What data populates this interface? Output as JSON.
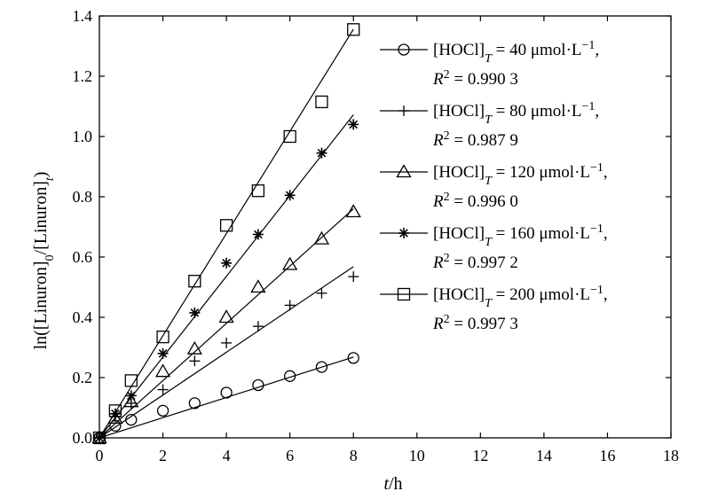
{
  "chart_data": {
    "type": "scatter",
    "xlabel": {
      "italic": "t",
      "rest": "/h"
    },
    "ylabel": {
      "parts": [
        "ln([Linuron]",
        "0",
        "/[Linuron]",
        "t",
        ")"
      ]
    },
    "xlim": [
      0,
      18
    ],
    "ylim": [
      0,
      1.4
    ],
    "xticks": [
      0,
      2,
      4,
      6,
      8,
      10,
      12,
      14,
      16,
      18
    ],
    "yticks": [
      0.0,
      0.2,
      0.4,
      0.6,
      0.8,
      1.0,
      1.2,
      1.4
    ],
    "grid": false,
    "legend_position": "top-right",
    "series": [
      {
        "name": "[HOCl]T = 40 μmol·L−1",
        "conc": "40",
        "r2": "0.990 3",
        "marker": "circle",
        "slope": 0.0335,
        "x": [
          0,
          0.5,
          1,
          2,
          3,
          4,
          5,
          6,
          7,
          8
        ],
        "y": [
          0.0,
          0.04,
          0.06,
          0.09,
          0.115,
          0.15,
          0.175,
          0.205,
          0.235,
          0.265
        ]
      },
      {
        "name": "[HOCl]T = 80 μmol·L−1",
        "conc": "80",
        "r2": "0.987 9",
        "marker": "plus",
        "slope": 0.071,
        "x": [
          0,
          0.5,
          1,
          2,
          3,
          4,
          5,
          6,
          7,
          8
        ],
        "y": [
          0.0,
          0.07,
          0.115,
          0.16,
          0.255,
          0.315,
          0.37,
          0.44,
          0.48,
          0.535
        ]
      },
      {
        "name": "[HOCl]T = 120 μmol·L−1",
        "conc": "120",
        "r2": "0.996 0",
        "marker": "triangle",
        "slope": 0.095,
        "x": [
          0,
          0.5,
          1,
          2,
          3,
          4,
          5,
          6,
          7,
          8
        ],
        "y": [
          0.0,
          0.065,
          0.12,
          0.22,
          0.295,
          0.4,
          0.5,
          0.575,
          0.66,
          0.75
        ]
      },
      {
        "name": "[HOCl]T = 160 μmol·L−1",
        "conc": "160",
        "r2": "0.997 2",
        "marker": "asterisk",
        "slope": 0.134,
        "x": [
          0,
          0.5,
          1,
          2,
          3,
          4,
          5,
          6,
          7,
          8
        ],
        "y": [
          0.0,
          0.08,
          0.14,
          0.28,
          0.415,
          0.58,
          0.675,
          0.805,
          0.945,
          1.04
        ]
      },
      {
        "name": "[HOCl]T = 200 μmol·L−1",
        "conc": "200",
        "r2": "0.997 3",
        "marker": "square",
        "slope": 0.1695,
        "x": [
          0,
          0.5,
          1,
          2,
          3,
          4,
          5,
          6,
          7,
          8
        ],
        "y": [
          0.0,
          0.09,
          0.19,
          0.335,
          0.52,
          0.705,
          0.82,
          1.0,
          1.115,
          1.355
        ]
      }
    ]
  }
}
